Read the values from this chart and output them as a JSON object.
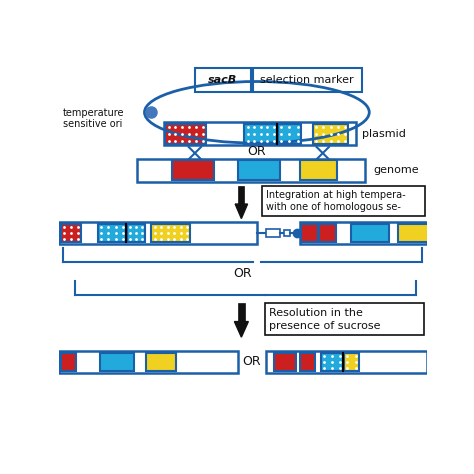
{
  "bg_color": "#ffffff",
  "blue_dark": "#1a5fa8",
  "red": "#cc2020",
  "cyan": "#22aadd",
  "yellow": "#f0d020",
  "text_color": "#111111",
  "plasmid_label": "plasmid",
  "genome_label": "genome",
  "temp_label": "temperature\nsensitive ori",
  "sacB_label": "sacB",
  "sel_label": "selection marker",
  "int_line1": "Integration at high tempera-",
  "int_line2": "with one of homologous se-",
  "res_line1": "Resolution in the",
  "res_line2": "presence of sucrose",
  "or_label": "OR"
}
